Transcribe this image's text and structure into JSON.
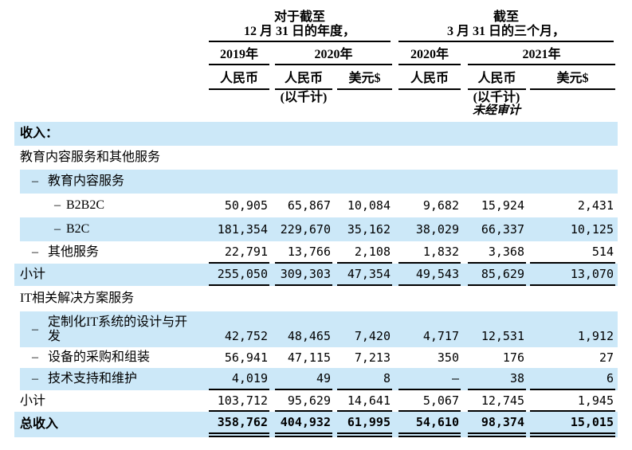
{
  "colors": {
    "row_highlight": "#cce8f8",
    "rule": "#000000",
    "text": "#000000"
  },
  "table": {
    "period_groups": [
      {
        "title_line1": "对于截至",
        "title_line2": "12 月 31 日的年度，"
      },
      {
        "title_line1": "截至",
        "title_line2": "3 月 31 日的三个月，"
      }
    ],
    "year_headers": [
      "2019年",
      "2020年",
      "2020年",
      "2021年"
    ],
    "currency_headers": [
      "人民币",
      "人民币",
      "美元$",
      "人民币",
      "人民币",
      "美元$"
    ],
    "unit_notes": [
      "(以千计)",
      "(以千计)"
    ],
    "audit_note": "未经审计",
    "rows": [
      {
        "label": "收入：",
        "indent": 0,
        "dash": false,
        "bold": true,
        "highlight": true,
        "rule": null,
        "values": null
      },
      {
        "label": "教育内容服务和其他服务",
        "indent": 0,
        "dash": false,
        "bold": false,
        "highlight": false,
        "rule": null,
        "values": null
      },
      {
        "label": "教育内容服务",
        "indent": 1,
        "dash": true,
        "bold": false,
        "highlight": true,
        "rule": null,
        "values": null
      },
      {
        "label": "B2B2C",
        "indent": 2,
        "dash": true,
        "bold": false,
        "highlight": false,
        "rule": null,
        "values": [
          "50,905",
          "65,867",
          "10,084",
          "9,682",
          "15,924",
          "2,431"
        ]
      },
      {
        "label": "B2C",
        "indent": 2,
        "dash": true,
        "bold": false,
        "highlight": true,
        "rule": null,
        "values": [
          "181,354",
          "229,670",
          "35,162",
          "38,029",
          "66,337",
          "10,125"
        ]
      },
      {
        "label": "其他服务",
        "indent": 1,
        "dash": true,
        "bold": false,
        "highlight": false,
        "rule": "single",
        "values": [
          "22,791",
          "13,766",
          "2,108",
          "1,832",
          "3,368",
          "514"
        ]
      },
      {
        "label": "小计",
        "indent": 0,
        "dash": false,
        "bold": false,
        "highlight": true,
        "rule": "single",
        "values": [
          "255,050",
          "309,303",
          "47,354",
          "49,543",
          "85,629",
          "13,070"
        ]
      },
      {
        "label": "IT相关解决方案服务",
        "indent": 0,
        "dash": false,
        "bold": false,
        "highlight": false,
        "rule": null,
        "values": null
      },
      {
        "label": "定制化IT系统的设计与开\n发",
        "indent": 1,
        "dash": true,
        "bold": false,
        "highlight": true,
        "rule": null,
        "wrap": true,
        "values": [
          "42,752",
          "48,465",
          "7,420",
          "4,717",
          "12,531",
          "1,912"
        ]
      },
      {
        "label": "设备的采购和组装",
        "indent": 1,
        "dash": true,
        "bold": false,
        "highlight": false,
        "rule": null,
        "values": [
          "56,941",
          "47,115",
          "7,213",
          "350",
          "176",
          "27"
        ]
      },
      {
        "label": "技术支持和维护",
        "indent": 1,
        "dash": true,
        "bold": false,
        "highlight": true,
        "rule": "single",
        "values": [
          "4,019",
          "49",
          "8",
          "—",
          "38",
          "6"
        ]
      },
      {
        "label": "小计",
        "indent": 0,
        "dash": false,
        "bold": false,
        "highlight": false,
        "rule": "single",
        "values": [
          "103,712",
          "95,629",
          "14,641",
          "5,067",
          "12,745",
          "1,945"
        ]
      },
      {
        "label": "总收入",
        "indent": 0,
        "dash": false,
        "bold": true,
        "highlight": true,
        "rule": "double",
        "values": [
          "358,762",
          "404,932",
          "61,995",
          "54,610",
          "98,374",
          "15,015"
        ]
      }
    ]
  }
}
